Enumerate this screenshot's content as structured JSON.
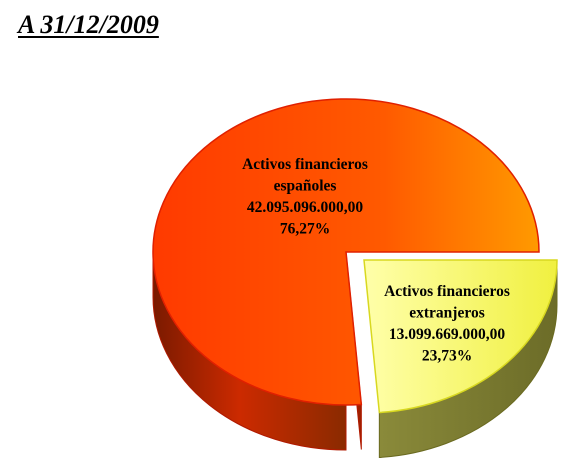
{
  "title": "A 31/12/2009",
  "chart_data": {
    "type": "pie",
    "title": "A 31/12/2009",
    "slices": [
      {
        "label_line1": "Activos financieros",
        "label_line2": "españoles",
        "value_text": "42.095.096.000,00",
        "percent_text": "76,27%",
        "value": 42095096000.0,
        "percent": 76.27,
        "color": "#ff5a00"
      },
      {
        "label_line1": "Activos financieros",
        "label_line2": "extranjeros",
        "value_text": "13.099.669.000,00",
        "percent_text": "23,73%",
        "value": 13099669000.0,
        "percent": 23.73,
        "color": "#ffff66"
      }
    ]
  }
}
